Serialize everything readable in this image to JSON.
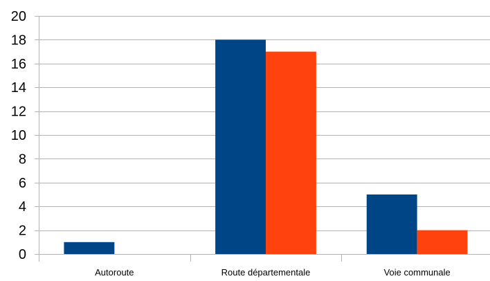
{
  "chart_data": {
    "type": "bar",
    "title": "",
    "xlabel": "",
    "ylabel": "",
    "categories": [
      "Autoroute",
      "Route départementale",
      "Voie communale"
    ],
    "series": [
      {
        "values": [
          1,
          18,
          5
        ],
        "color": "#004586"
      },
      {
        "values": [
          0,
          17,
          2
        ],
        "color": "#ff420e"
      }
    ],
    "ylim": [
      0,
      20
    ],
    "yticks": [
      "0",
      "2",
      "4",
      "6",
      "8",
      "10",
      "12",
      "14",
      "16",
      "18",
      "20"
    ],
    "grid": true,
    "legend": "none"
  }
}
